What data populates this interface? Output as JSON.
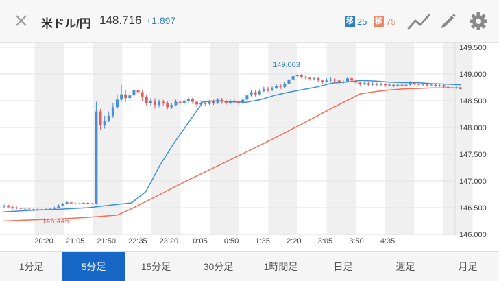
{
  "header": {
    "pair": "米ドル/円",
    "price": "148.716",
    "change": "+1.897",
    "ma_short": {
      "tag": "移",
      "value": "25",
      "color": "#2d7fc1"
    },
    "ma_long": {
      "tag": "移",
      "value": "75",
      "color": "#f08566"
    },
    "icons": [
      "close-icon",
      "line-chart-icon",
      "pencil-icon",
      "gear-icon"
    ]
  },
  "chart_data": {
    "type": "candlestick",
    "y_ticks": [
      "149.500",
      "149.000",
      "148.500",
      "148.000",
      "147.500",
      "147.000",
      "146.500",
      "146.000"
    ],
    "ylim": [
      146.0,
      149.5
    ],
    "x_ticks": [
      "20:20",
      "21:05",
      "21:50",
      "22:35",
      "23:20",
      "0:05",
      "0:50",
      "1:35",
      "2:20",
      "3:05",
      "3:50",
      "4:35"
    ],
    "annotations": [
      {
        "label": "149.003",
        "value": 149.003,
        "type": "high"
      },
      {
        "label": "146.446",
        "value": 146.446,
        "type": "low"
      }
    ],
    "series": [
      {
        "name": "移25",
        "color": "#3a8fd9",
        "x": [
          0,
          2,
          4,
          6,
          8,
          9,
          10,
          11,
          12,
          13,
          14,
          15,
          16,
          17,
          18,
          19,
          20,
          21,
          22,
          23,
          24,
          25,
          26,
          27,
          28,
          29,
          30,
          31,
          32
        ],
        "y": [
          146.42,
          146.45,
          146.47,
          146.5,
          146.56,
          146.59,
          146.8,
          147.3,
          147.72,
          148.1,
          148.48,
          148.5,
          148.48,
          148.47,
          148.52,
          148.6,
          148.66,
          148.71,
          148.76,
          148.83,
          148.85,
          148.88,
          148.87,
          148.85,
          148.84,
          148.84,
          148.82,
          148.81,
          148.8
        ]
      },
      {
        "name": "移75",
        "color": "#f26f56",
        "x": [
          0,
          2,
          4,
          6,
          8,
          9,
          11,
          13,
          15,
          17,
          19,
          21,
          23,
          25,
          26,
          27,
          28,
          29,
          30,
          31,
          32
        ],
        "y": [
          146.25,
          146.27,
          146.29,
          146.32,
          146.36,
          146.48,
          146.75,
          147.02,
          147.28,
          147.54,
          147.8,
          148.08,
          148.36,
          148.63,
          148.67,
          148.7,
          148.72,
          148.73,
          148.74,
          148.74,
          148.74
        ]
      }
    ],
    "candles": [
      [
        146.52,
        146.54,
        146.5,
        146.56
      ],
      [
        146.54,
        146.51,
        146.49,
        146.56
      ],
      [
        146.51,
        146.5,
        146.47,
        146.53
      ],
      [
        146.5,
        146.49,
        146.47,
        146.52
      ],
      [
        146.49,
        146.48,
        146.46,
        146.51
      ],
      [
        146.48,
        146.48,
        146.46,
        146.5
      ],
      [
        146.48,
        146.47,
        146.45,
        146.49
      ],
      [
        146.47,
        146.46,
        146.44,
        146.48
      ],
      [
        146.46,
        146.47,
        146.45,
        146.48
      ],
      [
        146.47,
        146.46,
        146.45,
        146.48
      ],
      [
        146.46,
        146.47,
        146.45,
        146.49
      ],
      [
        146.47,
        146.48,
        146.46,
        146.5
      ],
      [
        146.48,
        146.5,
        146.47,
        146.52
      ],
      [
        146.5,
        146.54,
        146.49,
        146.56
      ],
      [
        146.54,
        146.57,
        146.53,
        146.59
      ],
      [
        146.57,
        146.6,
        146.56,
        146.62
      ],
      [
        146.6,
        146.58,
        146.56,
        146.61
      ],
      [
        146.58,
        146.57,
        146.55,
        146.6
      ],
      [
        146.57,
        146.58,
        146.56,
        146.59
      ],
      [
        146.58,
        146.59,
        146.57,
        146.6
      ],
      [
        146.59,
        146.58,
        146.57,
        146.6
      ],
      [
        146.58,
        146.57,
        146.56,
        146.59
      ],
      [
        146.57,
        148.3,
        146.56,
        148.48
      ],
      [
        148.3,
        148.05,
        147.95,
        148.35
      ],
      [
        148.05,
        148.12,
        147.98,
        148.22
      ],
      [
        148.12,
        148.22,
        148.1,
        148.3
      ],
      [
        148.22,
        148.38,
        148.18,
        148.45
      ],
      [
        148.38,
        148.52,
        148.35,
        148.62
      ],
      [
        148.52,
        148.62,
        148.48,
        148.8
      ],
      [
        148.62,
        148.55,
        148.48,
        148.7
      ],
      [
        148.55,
        148.6,
        148.5,
        148.66
      ],
      [
        148.6,
        148.7,
        148.56,
        148.74
      ],
      [
        148.7,
        148.66,
        148.6,
        148.74
      ],
      [
        148.66,
        148.58,
        148.5,
        148.7
      ],
      [
        148.58,
        148.45,
        148.4,
        148.62
      ],
      [
        148.45,
        148.5,
        148.4,
        148.55
      ],
      [
        148.5,
        148.42,
        148.35,
        148.55
      ],
      [
        148.42,
        148.48,
        148.38,
        148.52
      ],
      [
        148.48,
        148.45,
        148.4,
        148.52
      ],
      [
        148.45,
        148.38,
        148.34,
        148.5
      ],
      [
        148.38,
        148.42,
        148.35,
        148.46
      ],
      [
        148.42,
        148.48,
        148.4,
        148.52
      ],
      [
        148.48,
        148.45,
        148.4,
        148.52
      ],
      [
        148.45,
        148.5,
        148.42,
        148.54
      ],
      [
        148.5,
        148.53,
        148.46,
        148.57
      ],
      [
        148.53,
        148.48,
        148.44,
        148.56
      ],
      [
        148.48,
        148.43,
        148.38,
        148.5
      ],
      [
        148.43,
        148.46,
        148.4,
        148.5
      ],
      [
        148.46,
        148.44,
        148.4,
        148.5
      ],
      [
        148.44,
        148.49,
        148.42,
        148.52
      ],
      [
        148.49,
        148.46,
        148.42,
        148.52
      ],
      [
        148.46,
        148.52,
        148.44,
        148.55
      ],
      [
        148.52,
        148.48,
        148.44,
        148.55
      ],
      [
        148.48,
        148.45,
        148.42,
        148.52
      ],
      [
        148.45,
        148.5,
        148.43,
        148.53
      ],
      [
        148.5,
        148.48,
        148.45,
        148.52
      ],
      [
        148.48,
        148.45,
        148.42,
        148.5
      ],
      [
        148.45,
        148.52,
        148.43,
        148.56
      ],
      [
        148.52,
        148.6,
        148.5,
        148.64
      ],
      [
        148.6,
        148.66,
        148.58,
        148.7
      ],
      [
        148.66,
        148.62,
        148.58,
        148.7
      ],
      [
        148.62,
        148.68,
        148.6,
        148.72
      ],
      [
        148.68,
        148.72,
        148.66,
        148.76
      ],
      [
        148.72,
        148.7,
        148.66,
        148.76
      ],
      [
        148.7,
        148.74,
        148.68,
        148.78
      ],
      [
        148.74,
        148.78,
        148.72,
        148.82
      ],
      [
        148.78,
        148.76,
        148.72,
        148.82
      ],
      [
        148.76,
        148.82,
        148.74,
        148.86
      ],
      [
        148.82,
        148.9,
        148.8,
        148.94
      ],
      [
        148.9,
        148.96,
        148.88,
        148.99
      ],
      [
        148.96,
        148.98,
        148.93,
        149.0
      ],
      [
        148.98,
        148.95,
        148.92,
        149.0
      ],
      [
        148.95,
        148.93,
        148.9,
        148.97
      ],
      [
        148.93,
        148.91,
        148.88,
        148.95
      ],
      [
        148.91,
        148.92,
        148.88,
        148.95
      ],
      [
        148.92,
        148.88,
        148.85,
        148.94
      ],
      [
        148.88,
        148.86,
        148.82,
        148.9
      ],
      [
        148.86,
        148.88,
        148.84,
        148.92
      ],
      [
        148.88,
        148.9,
        148.86,
        148.94
      ],
      [
        148.9,
        148.88,
        148.84,
        148.92
      ],
      [
        148.88,
        148.84,
        148.8,
        148.9
      ],
      [
        148.84,
        148.86,
        148.82,
        148.9
      ],
      [
        148.86,
        148.92,
        148.84,
        148.95
      ],
      [
        148.92,
        148.88,
        148.84,
        148.94
      ],
      [
        148.88,
        148.84,
        148.8,
        148.9
      ],
      [
        148.84,
        148.82,
        148.78,
        148.86
      ],
      [
        148.82,
        148.83,
        148.8,
        148.86
      ],
      [
        148.83,
        148.8,
        148.77,
        148.85
      ],
      [
        148.8,
        148.82,
        148.78,
        148.85
      ],
      [
        148.82,
        148.8,
        148.77,
        148.84
      ],
      [
        148.8,
        148.81,
        148.78,
        148.84
      ],
      [
        148.81,
        148.79,
        148.76,
        148.83
      ],
      [
        148.79,
        148.8,
        148.77,
        148.83
      ],
      [
        148.8,
        148.78,
        148.75,
        148.82
      ],
      [
        148.78,
        148.8,
        148.76,
        148.83
      ],
      [
        148.8,
        148.78,
        148.75,
        148.82
      ],
      [
        148.78,
        148.8,
        148.77,
        148.84
      ],
      [
        148.8,
        148.84,
        148.78,
        148.87
      ],
      [
        148.84,
        148.82,
        148.79,
        148.86
      ],
      [
        148.82,
        148.8,
        148.77,
        148.84
      ],
      [
        148.8,
        148.81,
        148.78,
        148.84
      ],
      [
        148.81,
        148.79,
        148.76,
        148.83
      ],
      [
        148.79,
        148.8,
        148.77,
        148.83
      ],
      [
        148.8,
        148.78,
        148.76,
        148.82
      ],
      [
        148.78,
        148.79,
        148.76,
        148.82
      ],
      [
        148.79,
        148.76,
        148.73,
        148.81
      ],
      [
        148.76,
        148.75,
        148.72,
        148.78
      ],
      [
        148.75,
        148.74,
        148.72,
        148.77
      ],
      [
        148.74,
        148.75,
        148.72,
        148.77
      ],
      [
        148.75,
        148.72,
        148.7,
        148.76
      ]
    ],
    "colors": {
      "up": "#4a8fd6",
      "down": "#e25c5c"
    }
  },
  "tabs": [
    {
      "label": "1分足",
      "active": false
    },
    {
      "label": "5分足",
      "active": true
    },
    {
      "label": "15分足",
      "active": false
    },
    {
      "label": "30分足",
      "active": false
    },
    {
      "label": "1時間足",
      "active": false
    },
    {
      "label": "日足",
      "active": false
    },
    {
      "label": "週足",
      "active": false
    },
    {
      "label": "月足",
      "active": false
    }
  ]
}
